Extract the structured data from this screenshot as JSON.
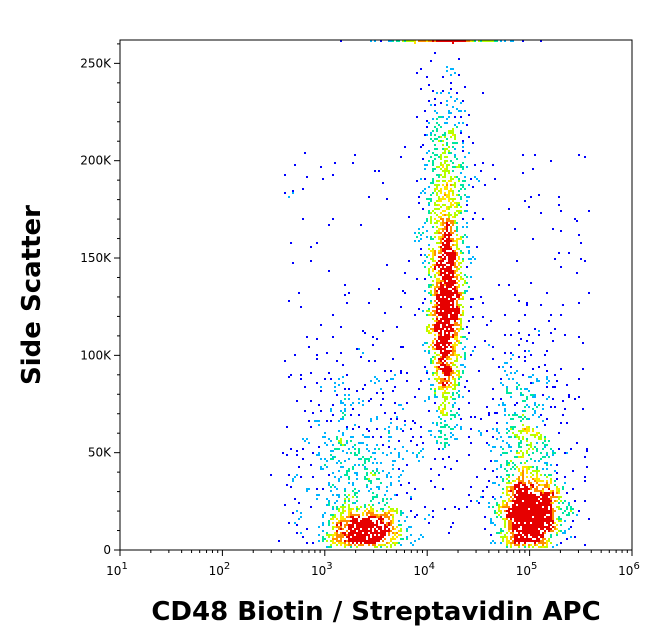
{
  "chart_data": {
    "type": "scatter",
    "subtype": "flow-cytometry density dot plot",
    "title": "",
    "xlabel": "CD48 Biotin / Streptavidin APC",
    "ylabel": "Side Scatter",
    "x_scale": "log10",
    "xlim": [
      10,
      1000000
    ],
    "ylim": [
      0,
      262000
    ],
    "x_ticks": [
      {
        "base": "10",
        "exp": "1",
        "value": 10
      },
      {
        "base": "10",
        "exp": "2",
        "value": 100
      },
      {
        "base": "10",
        "exp": "3",
        "value": 1000
      },
      {
        "base": "10",
        "exp": "4",
        "value": 10000
      },
      {
        "base": "10",
        "exp": "5",
        "value": 100000
      },
      {
        "base": "10",
        "exp": "6",
        "value": 1000000
      }
    ],
    "y_ticks": [
      {
        "label": "0",
        "value": 0
      },
      {
        "label": "50K",
        "value": 50000
      },
      {
        "label": "100K",
        "value": 100000
      },
      {
        "label": "150K",
        "value": 150000
      },
      {
        "label": "200K",
        "value": 200000
      },
      {
        "label": "250K",
        "value": 250000
      }
    ],
    "color_scale": [
      "#0000ff",
      "#00b4ff",
      "#00e6a0",
      "#b4ff00",
      "#ffe600",
      "#ff8c00",
      "#e60000"
    ],
    "grid": false,
    "legend": "none",
    "populations": [
      {
        "center_x": 2500,
        "center_y": 12000,
        "spread_log_x": 0.2,
        "spread_y": 6000,
        "density": "high",
        "events": 700
      },
      {
        "center_x": 2000,
        "center_y": 45000,
        "spread_log_x": 0.3,
        "spread_y": 25000,
        "density": "low",
        "events": 500
      },
      {
        "center_x": 15000,
        "center_y": 125000,
        "spread_log_x": 0.09,
        "spread_y": 30000,
        "density": "high",
        "events": 1500
      },
      {
        "center_x": 15000,
        "center_y": 190000,
        "spread_log_x": 0.12,
        "spread_y": 35000,
        "density": "medium",
        "events": 500
      },
      {
        "center_x": 100000,
        "center_y": 20000,
        "spread_log_x": 0.15,
        "spread_y": 9000,
        "density": "very high",
        "events": 1300
      },
      {
        "center_x": 90000,
        "center_y": 55000,
        "spread_log_x": 0.18,
        "spread_y": 25000,
        "density": "medium",
        "events": 500
      },
      {
        "center_x": 15000,
        "center_y": 262000,
        "spread_log_x": 0.3,
        "spread_y": 0,
        "density": "saturated edge",
        "events": 200
      }
    ]
  }
}
